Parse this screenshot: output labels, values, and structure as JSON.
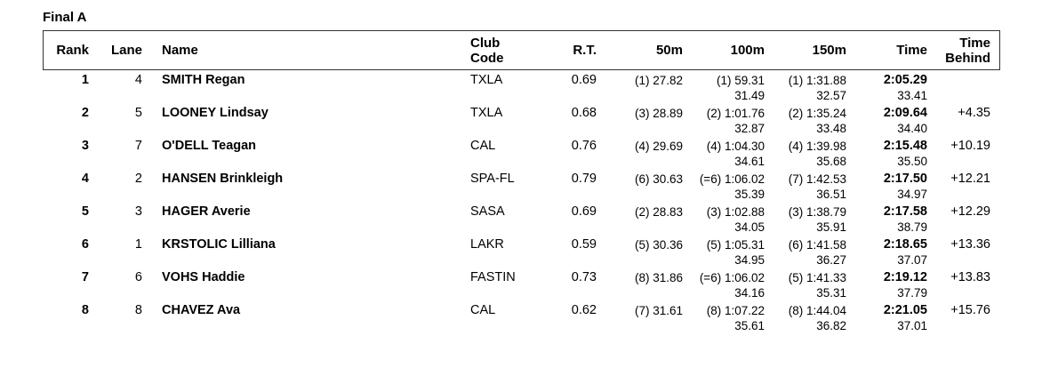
{
  "title": "Final A",
  "headers": {
    "rank": "Rank",
    "lane": "Lane",
    "name": "Name",
    "club_line1": "Club",
    "club_line2": "Code",
    "rt": "R.T.",
    "s50": "50m",
    "s100": "100m",
    "s150": "150m",
    "time": "Time",
    "behind_line1": "Time",
    "behind_line2": "Behind"
  },
  "rows": [
    {
      "rank": "1",
      "lane": "4",
      "name": "SMITH Regan",
      "club": "TXLA",
      "rt": "0.69",
      "s50": "(1) 27.82",
      "s100": "(1) 59.31",
      "s100_split": "31.49",
      "s150": "(1) 1:31.88",
      "s150_split": "32.57",
      "time": "2:05.29",
      "time_split": "33.41",
      "behind": ""
    },
    {
      "rank": "2",
      "lane": "5",
      "name": "LOONEY Lindsay",
      "club": "TXLA",
      "rt": "0.68",
      "s50": "(3) 28.89",
      "s100": "(2) 1:01.76",
      "s100_split": "32.87",
      "s150": "(2) 1:35.24",
      "s150_split": "33.48",
      "time": "2:09.64",
      "time_split": "34.40",
      "behind": "+4.35"
    },
    {
      "rank": "3",
      "lane": "7",
      "name": "O'DELL Teagan",
      "club": "CAL",
      "rt": "0.76",
      "s50": "(4) 29.69",
      "s100": "(4) 1:04.30",
      "s100_split": "34.61",
      "s150": "(4) 1:39.98",
      "s150_split": "35.68",
      "time": "2:15.48",
      "time_split": "35.50",
      "behind": "+10.19"
    },
    {
      "rank": "4",
      "lane": "2",
      "name": "HANSEN Brinkleigh",
      "club": "SPA-FL",
      "rt": "0.79",
      "s50": "(6) 30.63",
      "s100": "(=6) 1:06.02",
      "s100_split": "35.39",
      "s150": "(7) 1:42.53",
      "s150_split": "36.51",
      "time": "2:17.50",
      "time_split": "34.97",
      "behind": "+12.21"
    },
    {
      "rank": "5",
      "lane": "3",
      "name": "HAGER Averie",
      "club": "SASA",
      "rt": "0.69",
      "s50": "(2) 28.83",
      "s100": "(3) 1:02.88",
      "s100_split": "34.05",
      "s150": "(3) 1:38.79",
      "s150_split": "35.91",
      "time": "2:17.58",
      "time_split": "38.79",
      "behind": "+12.29"
    },
    {
      "rank": "6",
      "lane": "1",
      "name": "KRSTOLIC Lilliana",
      "club": "LAKR",
      "rt": "0.59",
      "s50": "(5) 30.36",
      "s100": "(5) 1:05.31",
      "s100_split": "34.95",
      "s150": "(6) 1:41.58",
      "s150_split": "36.27",
      "time": "2:18.65",
      "time_split": "37.07",
      "behind": "+13.36"
    },
    {
      "rank": "7",
      "lane": "6",
      "name": "VOHS Haddie",
      "club": "FASTIN",
      "rt": "0.73",
      "s50": "(8) 31.86",
      "s100": "(=6) 1:06.02",
      "s100_split": "34.16",
      "s150": "(5) 1:41.33",
      "s150_split": "35.31",
      "time": "2:19.12",
      "time_split": "37.79",
      "behind": "+13.83"
    },
    {
      "rank": "8",
      "lane": "8",
      "name": "CHAVEZ Ava",
      "club": "CAL",
      "rt": "0.62",
      "s50": "(7) 31.61",
      "s100": "(8) 1:07.22",
      "s100_split": "35.61",
      "s150": "(8) 1:44.04",
      "s150_split": "36.82",
      "time": "2:21.05",
      "time_split": "37.01",
      "behind": "+15.76"
    }
  ]
}
